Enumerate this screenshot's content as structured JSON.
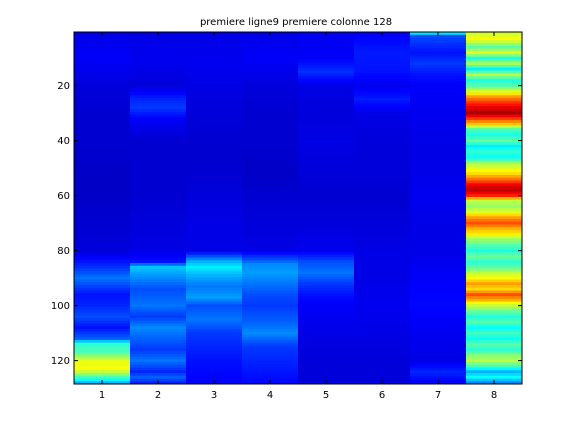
{
  "chart_data": {
    "type": "heatmap",
    "title": "premiere ligne9 premiere colonne 128",
    "xlabel": "",
    "ylabel": "",
    "colormap": "jet",
    "clim": [
      0,
      1
    ],
    "columns": [
      1,
      2,
      3,
      4,
      5,
      6,
      7,
      8
    ],
    "rows": 128,
    "x_ticks": [
      "1",
      "2",
      "3",
      "4",
      "5",
      "6",
      "7",
      "8"
    ],
    "y_ticks": [
      "20",
      "40",
      "60",
      "80",
      "100",
      "120"
    ],
    "y_tick_values": [
      20,
      40,
      60,
      80,
      100,
      120
    ],
    "grid": false,
    "profiles": [
      {
        "column": 1,
        "values": [
          [
            1,
            0.1
          ],
          [
            10,
            0.12
          ],
          [
            20,
            0.09
          ],
          [
            30,
            0.08
          ],
          [
            40,
            0.08
          ],
          [
            50,
            0.07
          ],
          [
            60,
            0.07
          ],
          [
            70,
            0.08
          ],
          [
            80,
            0.09
          ],
          [
            86,
            0.17
          ],
          [
            90,
            0.24
          ],
          [
            96,
            0.14
          ],
          [
            100,
            0.16
          ],
          [
            104,
            0.2
          ],
          [
            108,
            0.14
          ],
          [
            112,
            0.22
          ],
          [
            114,
            0.42
          ],
          [
            117,
            0.45
          ],
          [
            120,
            0.6
          ],
          [
            123,
            0.62
          ],
          [
            126,
            0.45
          ],
          [
            128,
            0.3
          ]
        ]
      },
      {
        "column": 2,
        "values": [
          [
            1,
            0.1
          ],
          [
            10,
            0.11
          ],
          [
            20,
            0.09
          ],
          [
            25,
            0.16
          ],
          [
            28,
            0.18
          ],
          [
            32,
            0.12
          ],
          [
            40,
            0.08
          ],
          [
            50,
            0.08
          ],
          [
            60,
            0.08
          ],
          [
            70,
            0.09
          ],
          [
            80,
            0.1
          ],
          [
            84,
            0.14
          ],
          [
            86,
            0.32
          ],
          [
            90,
            0.26
          ],
          [
            94,
            0.2
          ],
          [
            100,
            0.24
          ],
          [
            104,
            0.18
          ],
          [
            108,
            0.26
          ],
          [
            112,
            0.22
          ],
          [
            116,
            0.18
          ],
          [
            120,
            0.24
          ],
          [
            124,
            0.16
          ],
          [
            126,
            0.22
          ],
          [
            128,
            0.16
          ]
        ]
      },
      {
        "column": 3,
        "values": [
          [
            1,
            0.1
          ],
          [
            10,
            0.11
          ],
          [
            20,
            0.1
          ],
          [
            30,
            0.09
          ],
          [
            40,
            0.08
          ],
          [
            50,
            0.08
          ],
          [
            60,
            0.09
          ],
          [
            70,
            0.1
          ],
          [
            80,
            0.1
          ],
          [
            84,
            0.3
          ],
          [
            86,
            0.36
          ],
          [
            89,
            0.3
          ],
          [
            93,
            0.24
          ],
          [
            97,
            0.28
          ],
          [
            100,
            0.2
          ],
          [
            105,
            0.24
          ],
          [
            110,
            0.18
          ],
          [
            115,
            0.16
          ],
          [
            120,
            0.14
          ],
          [
            125,
            0.13
          ],
          [
            128,
            0.12
          ]
        ]
      },
      {
        "column": 4,
        "values": [
          [
            1,
            0.1
          ],
          [
            10,
            0.12
          ],
          [
            20,
            0.09
          ],
          [
            30,
            0.08
          ],
          [
            40,
            0.08
          ],
          [
            50,
            0.07
          ],
          [
            60,
            0.08
          ],
          [
            70,
            0.09
          ],
          [
            80,
            0.1
          ],
          [
            85,
            0.26
          ],
          [
            88,
            0.28
          ],
          [
            92,
            0.24
          ],
          [
            96,
            0.2
          ],
          [
            100,
            0.18
          ],
          [
            106,
            0.22
          ],
          [
            110,
            0.26
          ],
          [
            115,
            0.18
          ],
          [
            120,
            0.16
          ],
          [
            125,
            0.14
          ],
          [
            128,
            0.13
          ]
        ]
      },
      {
        "column": 5,
        "values": [
          [
            1,
            0.11
          ],
          [
            10,
            0.12
          ],
          [
            15,
            0.17
          ],
          [
            20,
            0.1
          ],
          [
            30,
            0.09
          ],
          [
            40,
            0.1
          ],
          [
            50,
            0.09
          ],
          [
            60,
            0.08
          ],
          [
            70,
            0.09
          ],
          [
            80,
            0.11
          ],
          [
            84,
            0.2
          ],
          [
            88,
            0.24
          ],
          [
            92,
            0.18
          ],
          [
            96,
            0.14
          ],
          [
            100,
            0.12
          ],
          [
            110,
            0.1
          ],
          [
            120,
            0.09
          ],
          [
            128,
            0.09
          ]
        ]
      },
      {
        "column": 6,
        "values": [
          [
            1,
            0.12
          ],
          [
            8,
            0.15
          ],
          [
            15,
            0.14
          ],
          [
            20,
            0.11
          ],
          [
            25,
            0.15
          ],
          [
            30,
            0.1
          ],
          [
            40,
            0.09
          ],
          [
            50,
            0.09
          ],
          [
            60,
            0.08
          ],
          [
            70,
            0.09
          ],
          [
            80,
            0.1
          ],
          [
            90,
            0.1
          ],
          [
            100,
            0.11
          ],
          [
            110,
            0.1
          ],
          [
            120,
            0.09
          ],
          [
            128,
            0.09
          ]
        ]
      },
      {
        "column": 7,
        "values": [
          [
            1,
            0.35
          ],
          [
            2,
            0.2
          ],
          [
            8,
            0.14
          ],
          [
            12,
            0.18
          ],
          [
            16,
            0.14
          ],
          [
            20,
            0.12
          ],
          [
            30,
            0.11
          ],
          [
            40,
            0.1
          ],
          [
            50,
            0.1
          ],
          [
            60,
            0.11
          ],
          [
            70,
            0.1
          ],
          [
            80,
            0.1
          ],
          [
            90,
            0.12
          ],
          [
            100,
            0.13
          ],
          [
            110,
            0.11
          ],
          [
            120,
            0.1
          ],
          [
            124,
            0.16
          ],
          [
            126,
            0.14
          ],
          [
            128,
            0.12
          ]
        ]
      },
      {
        "column": 8,
        "values": [
          [
            1,
            0.58
          ],
          [
            3,
            0.62
          ],
          [
            6,
            0.46
          ],
          [
            8,
            0.6
          ],
          [
            10,
            0.4
          ],
          [
            12,
            0.54
          ],
          [
            14,
            0.36
          ],
          [
            16,
            0.56
          ],
          [
            18,
            0.4
          ],
          [
            20,
            0.46
          ],
          [
            22,
            0.58
          ],
          [
            24,
            0.72
          ],
          [
            26,
            0.82
          ],
          [
            28,
            0.9
          ],
          [
            30,
            0.96
          ],
          [
            32,
            0.82
          ],
          [
            34,
            0.68
          ],
          [
            36,
            0.44
          ],
          [
            38,
            0.4
          ],
          [
            40,
            0.48
          ],
          [
            42,
            0.36
          ],
          [
            44,
            0.42
          ],
          [
            46,
            0.38
          ],
          [
            48,
            0.52
          ],
          [
            50,
            0.6
          ],
          [
            52,
            0.66
          ],
          [
            54,
            0.76
          ],
          [
            56,
            0.88
          ],
          [
            58,
            0.94
          ],
          [
            60,
            0.84
          ],
          [
            62,
            0.56
          ],
          [
            64,
            0.52
          ],
          [
            66,
            0.6
          ],
          [
            68,
            0.72
          ],
          [
            70,
            0.8
          ],
          [
            72,
            0.7
          ],
          [
            74,
            0.64
          ],
          [
            76,
            0.52
          ],
          [
            78,
            0.46
          ],
          [
            80,
            0.4
          ],
          [
            82,
            0.48
          ],
          [
            84,
            0.42
          ],
          [
            86,
            0.46
          ],
          [
            88,
            0.56
          ],
          [
            90,
            0.62
          ],
          [
            92,
            0.72
          ],
          [
            94,
            0.66
          ],
          [
            96,
            0.8
          ],
          [
            98,
            0.7
          ],
          [
            100,
            0.56
          ],
          [
            102,
            0.48
          ],
          [
            104,
            0.4
          ],
          [
            106,
            0.46
          ],
          [
            108,
            0.38
          ],
          [
            110,
            0.44
          ],
          [
            112,
            0.38
          ],
          [
            114,
            0.46
          ],
          [
            116,
            0.42
          ],
          [
            118,
            0.5
          ],
          [
            120,
            0.56
          ],
          [
            122,
            0.44
          ],
          [
            124,
            0.3
          ],
          [
            126,
            0.38
          ],
          [
            128,
            0.26
          ]
        ]
      }
    ]
  }
}
